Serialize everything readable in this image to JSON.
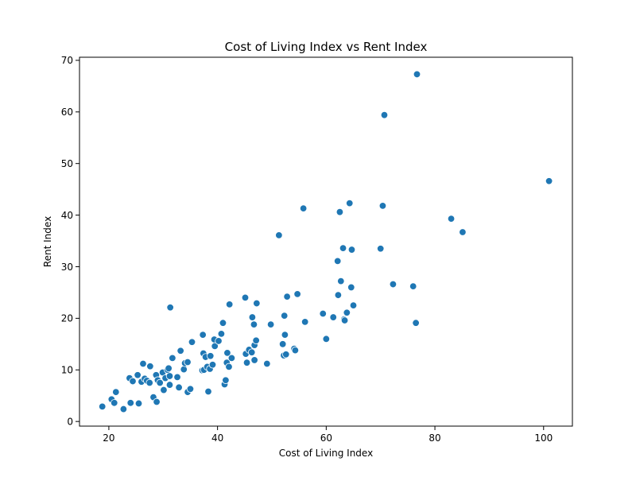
{
  "chart_data": {
    "type": "scatter",
    "title": "Cost of Living Index vs Rent Index",
    "xlabel": "Cost of Living Index",
    "ylabel": "Rent Index",
    "xlim": [
      14.6,
      105.3
    ],
    "ylim": [
      -0.9,
      70.6
    ],
    "xticks": [
      20,
      40,
      60,
      80,
      100
    ],
    "yticks": [
      0,
      10,
      20,
      30,
      40,
      50,
      60,
      70
    ],
    "grid": false,
    "legend": "none",
    "point_color": "#1f77b4",
    "point_edge_color": "#ffffff",
    "points": [
      [
        18.8,
        2.9
      ],
      [
        20.5,
        4.3
      ],
      [
        21.0,
        3.6
      ],
      [
        21.3,
        5.7
      ],
      [
        22.7,
        2.4
      ],
      [
        23.8,
        8.4
      ],
      [
        24.0,
        3.6
      ],
      [
        24.4,
        7.8
      ],
      [
        25.3,
        9.0
      ],
      [
        25.5,
        3.5
      ],
      [
        26.0,
        7.7
      ],
      [
        26.3,
        11.2
      ],
      [
        26.6,
        8.3
      ],
      [
        27.0,
        7.9
      ],
      [
        27.5,
        7.5
      ],
      [
        27.6,
        10.7
      ],
      [
        28.2,
        4.7
      ],
      [
        28.7,
        9.0
      ],
      [
        28.8,
        3.8
      ],
      [
        29.0,
        8.0
      ],
      [
        29.4,
        7.5
      ],
      [
        29.9,
        9.5
      ],
      [
        30.1,
        6.1
      ],
      [
        30.4,
        8.4
      ],
      [
        30.8,
        10.0
      ],
      [
        31.0,
        10.3
      ],
      [
        31.2,
        8.8
      ],
      [
        31.2,
        7.1
      ],
      [
        31.3,
        22.1
      ],
      [
        31.7,
        12.3
      ],
      [
        32.6,
        8.6
      ],
      [
        32.9,
        6.6
      ],
      [
        33.2,
        13.7
      ],
      [
        33.8,
        10.1
      ],
      [
        34.0,
        11.3
      ],
      [
        34.5,
        11.5
      ],
      [
        34.5,
        5.7
      ],
      [
        35.0,
        6.3
      ],
      [
        35.3,
        15.4
      ],
      [
        37.2,
        9.9
      ],
      [
        37.4,
        13.2
      ],
      [
        37.3,
        16.8
      ],
      [
        37.5,
        10.0
      ],
      [
        37.8,
        12.5
      ],
      [
        38.1,
        10.6
      ],
      [
        38.3,
        5.8
      ],
      [
        38.6,
        10.2
      ],
      [
        38.7,
        12.7
      ],
      [
        39.1,
        11.0
      ],
      [
        39.4,
        15.9
      ],
      [
        39.5,
        14.6
      ],
      [
        40.2,
        15.6
      ],
      [
        40.7,
        17.0
      ],
      [
        41.0,
        19.1
      ],
      [
        41.3,
        7.2
      ],
      [
        41.5,
        8.0
      ],
      [
        41.7,
        11.4
      ],
      [
        41.8,
        13.3
      ],
      [
        42.1,
        10.6
      ],
      [
        42.2,
        22.7
      ],
      [
        42.6,
        12.3
      ],
      [
        45.1,
        24.0
      ],
      [
        45.2,
        13.1
      ],
      [
        45.4,
        11.4
      ],
      [
        45.8,
        13.9
      ],
      [
        46.3,
        13.4
      ],
      [
        46.4,
        20.2
      ],
      [
        46.7,
        18.8
      ],
      [
        46.8,
        14.8
      ],
      [
        46.8,
        11.9
      ],
      [
        47.1,
        15.7
      ],
      [
        47.2,
        22.9
      ],
      [
        49.1,
        11.2
      ],
      [
        49.8,
        18.8
      ],
      [
        51.3,
        36.1
      ],
      [
        52.0,
        15.0
      ],
      [
        52.2,
        12.8
      ],
      [
        52.4,
        16.8
      ],
      [
        52.6,
        13.0
      ],
      [
        52.3,
        20.5
      ],
      [
        52.8,
        24.2
      ],
      [
        54.1,
        14.1
      ],
      [
        54.3,
        13.8
      ],
      [
        54.7,
        24.7
      ],
      [
        55.8,
        41.3
      ],
      [
        56.1,
        19.3
      ],
      [
        59.4,
        20.9
      ],
      [
        60.0,
        16.0
      ],
      [
        61.3,
        20.2
      ],
      [
        62.1,
        31.1
      ],
      [
        62.2,
        24.5
      ],
      [
        62.5,
        40.6
      ],
      [
        62.7,
        27.2
      ],
      [
        63.1,
        33.6
      ],
      [
        63.3,
        19.8
      ],
      [
        63.4,
        19.6
      ],
      [
        63.8,
        21.1
      ],
      [
        64.3,
        42.3
      ],
      [
        64.6,
        26.0
      ],
      [
        64.7,
        33.3
      ],
      [
        65.0,
        22.5
      ],
      [
        70.0,
        33.5
      ],
      [
        70.4,
        41.8
      ],
      [
        70.7,
        59.4
      ],
      [
        72.3,
        26.6
      ],
      [
        76.0,
        26.2
      ],
      [
        76.5,
        19.1
      ],
      [
        76.7,
        67.3
      ],
      [
        83.0,
        39.3
      ],
      [
        85.1,
        36.7
      ],
      [
        101.0,
        46.6
      ]
    ]
  }
}
